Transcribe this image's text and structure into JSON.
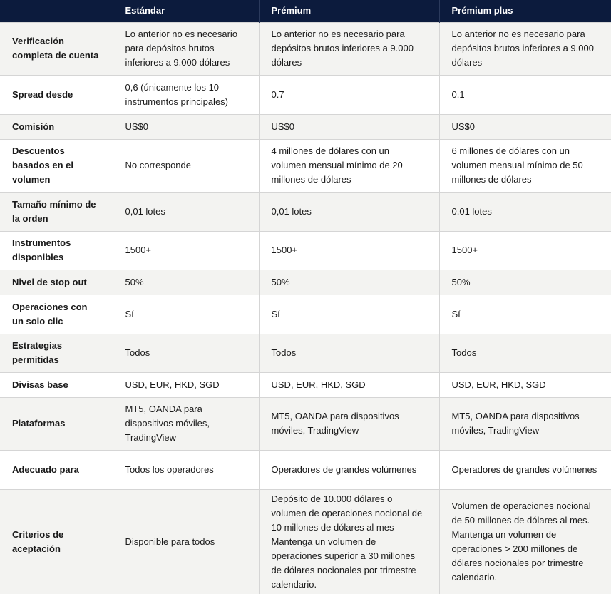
{
  "table": {
    "headers": [
      "",
      "Estándar",
      "Prémium",
      "Prémium plus"
    ],
    "rows": [
      {
        "label": "Verificación completa de cuenta",
        "values": [
          "Lo anterior no es necesario para depósitos brutos inferiores a 9.000 dólares",
          "Lo anterior no es necesario para depósitos brutos inferiores a 9.000 dólares",
          "Lo anterior no es necesario para depósitos brutos inferiores a 9.000 dólares"
        ]
      },
      {
        "label": "Spread desde",
        "values": [
          "0,6 (únicamente los 10 instrumentos principales)",
          "0.7",
          "0.1"
        ]
      },
      {
        "label": "Comisión",
        "values": [
          "US$0",
          "US$0",
          "US$0"
        ]
      },
      {
        "label": "Descuentos basados en el volumen",
        "values": [
          "No corresponde",
          "4 millones de dólares con un volumen mensual mínimo de 20 millones de dólares",
          "6 millones de dólares con un volumen mensual mínimo de 50 millones de dólares"
        ]
      },
      {
        "label": "Tamaño mínimo de la orden",
        "values": [
          "0,01 lotes",
          "0,01 lotes",
          "0,01 lotes"
        ]
      },
      {
        "label": "Instrumentos disponibles",
        "values": [
          "1500+",
          "1500+",
          "1500+"
        ]
      },
      {
        "label": "Nivel de stop out",
        "values": [
          "50%",
          "50%",
          "50%"
        ]
      },
      {
        "label": "Operaciones con un solo clic",
        "values": [
          "Sí",
          "Sí",
          "Sí"
        ]
      },
      {
        "label": "Estrategias permitidas",
        "values": [
          "Todos",
          "Todos",
          "Todos"
        ]
      },
      {
        "label": "Divisas base",
        "values": [
          "USD, EUR, HKD, SGD",
          "USD, EUR, HKD, SGD",
          "USD, EUR, HKD, SGD"
        ]
      },
      {
        "label": "Plataformas",
        "values": [
          "MT5, OANDA para dispositivos móviles, TradingView",
          "MT5, OANDA para dispositivos móviles, TradingView",
          "MT5, OANDA para dispositivos móviles, TradingView"
        ]
      },
      {
        "label": "Adecuado para",
        "values": [
          "Todos los operadores",
          "Operadores de grandes volúmenes",
          "Operadores de grandes volúmenes"
        ]
      },
      {
        "label": "Criterios de aceptación",
        "values": [
          "Disponible para todos",
          "Depósito de 10.000 dólares o volumen de operaciones nocional de 10 millones de dólares al mes Mantenga un volumen de operaciones superior a 30 millones de dólares nocionales por trimestre calendario.",
          "Volumen de operaciones nocional de 50 millones de dólares al mes. Mantenga un volumen de operaciones > 200 millones de dólares nocionales por trimestre calendario."
        ]
      }
    ]
  },
  "colors": {
    "header_bg": "#0c1b3d",
    "header_text": "#ffffff",
    "row_alt_bg": "#f3f3f1",
    "border": "#d5d5d5"
  }
}
